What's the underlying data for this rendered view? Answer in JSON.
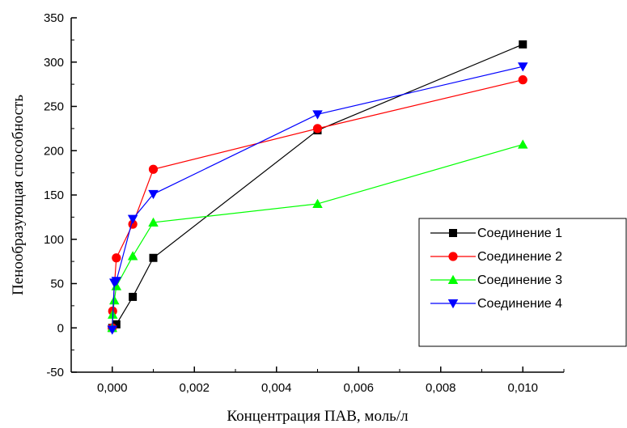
{
  "chart_data": {
    "type": "line",
    "title": "",
    "xlabel": "Концентрация ПАВ, моль/л",
    "ylabel": "Пенообразующая способность",
    "xlim": [
      -0.001,
      0.011
    ],
    "ylim": [
      -50,
      350
    ],
    "xticks": [
      0.0,
      0.002,
      0.004,
      0.006,
      0.008,
      0.01
    ],
    "xtick_labels": [
      "0,000",
      "0,002",
      "0,004",
      "0,006",
      "0,008",
      "0,010"
    ],
    "yticks": [
      -50,
      0,
      50,
      100,
      150,
      200,
      250,
      300,
      350
    ],
    "ytick_labels": [
      "-50",
      "0",
      "50",
      "100",
      "150",
      "200",
      "250",
      "300",
      "350"
    ],
    "grid": false,
    "legend_position": "bottom-right",
    "series": [
      {
        "name": "Соединение 1",
        "color": "#000000",
        "marker": "square",
        "x": [
          0,
          0.0001,
          0.0005,
          0.001,
          0.005,
          0.01
        ],
        "y": [
          0,
          4,
          35,
          79,
          223,
          320
        ]
      },
      {
        "name": "Соединение 2",
        "color": "#ff0000",
        "marker": "circle",
        "x": [
          0,
          1e-05,
          0.0001,
          0.0005,
          0.001,
          0.005,
          0.01
        ],
        "y": [
          0,
          19,
          79,
          117,
          179,
          225,
          280
        ]
      },
      {
        "name": "Соединение 3",
        "color": "#00ff00",
        "marker": "triangle-up",
        "x": [
          0,
          1e-05,
          5e-05,
          0.0001,
          0.0005,
          0.001,
          0.005,
          0.01
        ],
        "y": [
          0,
          15,
          31,
          47,
          81,
          119,
          140,
          207
        ]
      },
      {
        "name": "Соединение 4",
        "color": "#0000ff",
        "marker": "triangle-down",
        "x": [
          0,
          5e-05,
          0.0001,
          0.0005,
          0.001,
          0.005,
          0.01
        ],
        "y": [
          -2,
          51,
          53,
          123,
          151,
          241,
          295
        ]
      }
    ]
  }
}
